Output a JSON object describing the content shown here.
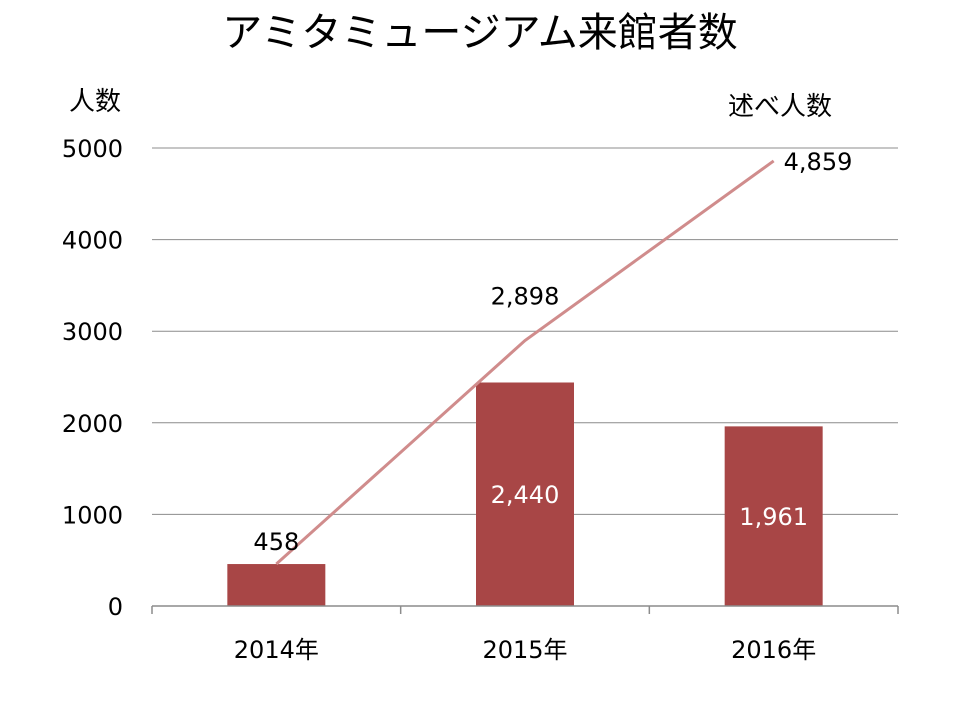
{
  "chart_data": {
    "type": "bar",
    "title": "アミタミュージアム来館者数",
    "ylabel": "人数",
    "y2label": "述べ人数",
    "categories": [
      "2014年",
      "2015年",
      "2016年"
    ],
    "ylim": [
      0,
      5000
    ],
    "yticks": [
      0,
      1000,
      2000,
      3000,
      4000,
      5000
    ],
    "grid": true,
    "legend": "none",
    "series": [
      {
        "type": "bar",
        "values": [
          458,
          2440,
          1961
        ],
        "labels": [
          "458",
          "2,440",
          "1,961"
        ],
        "color": "#a84646"
      },
      {
        "type": "line",
        "values": [
          458,
          2898,
          4859
        ],
        "labels": [
          "",
          "2,898",
          "4,859"
        ],
        "color": "#d08c8c"
      }
    ]
  }
}
